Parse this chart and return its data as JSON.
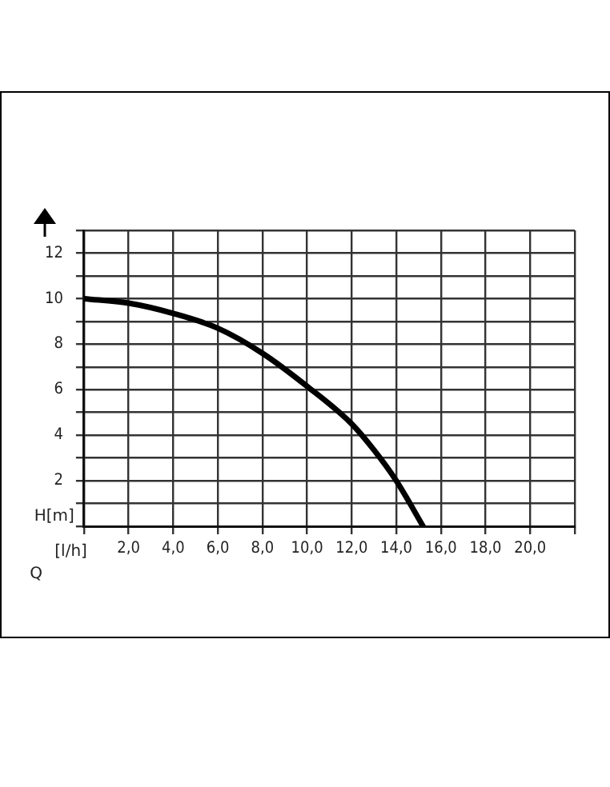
{
  "chart_data": {
    "type": "line",
    "xlabel": "[l/h]",
    "ylabel": "H[m]",
    "annotations": [
      "Q"
    ],
    "x": [
      0,
      2,
      4,
      6,
      8,
      10,
      12,
      13,
      14,
      15.2
    ],
    "series": [
      {
        "color": "#000000",
        "values": [
          10,
          9.8,
          9.35,
          8.7,
          7.6,
          6.15,
          4.5,
          3.35,
          2.0,
          0
        ]
      }
    ],
    "xlim": [
      0,
      22
    ],
    "ylim": [
      0,
      13
    ],
    "xticks": [
      {
        "value": 0,
        "label": null
      },
      {
        "value": 2,
        "label": "2,0"
      },
      {
        "value": 4,
        "label": "4,0"
      },
      {
        "value": 6,
        "label": "6,0"
      },
      {
        "value": 8,
        "label": "8,0"
      },
      {
        "value": 10,
        "label": "10,0"
      },
      {
        "value": 12,
        "label": "12,0"
      },
      {
        "value": 14,
        "label": "14,0"
      },
      {
        "value": 16,
        "label": "16,0"
      },
      {
        "value": 18,
        "label": "18,0"
      },
      {
        "value": 20,
        "label": "20,0"
      },
      {
        "value": 22,
        "label": null
      }
    ],
    "yticks": [
      {
        "value": 0,
        "label": null
      },
      {
        "value": 1,
        "label": null
      },
      2,
      {
        "value": 3,
        "label": null
      },
      4,
      {
        "value": 5,
        "label": null
      },
      6,
      {
        "value": 7,
        "label": null
      },
      8,
      {
        "value": 9,
        "label": null
      },
      10,
      {
        "value": 11,
        "label": null
      },
      12,
      {
        "value": 13,
        "label": null
      }
    ],
    "grid": true,
    "legend": false,
    "marker": "none",
    "line_style": "solid"
  }
}
